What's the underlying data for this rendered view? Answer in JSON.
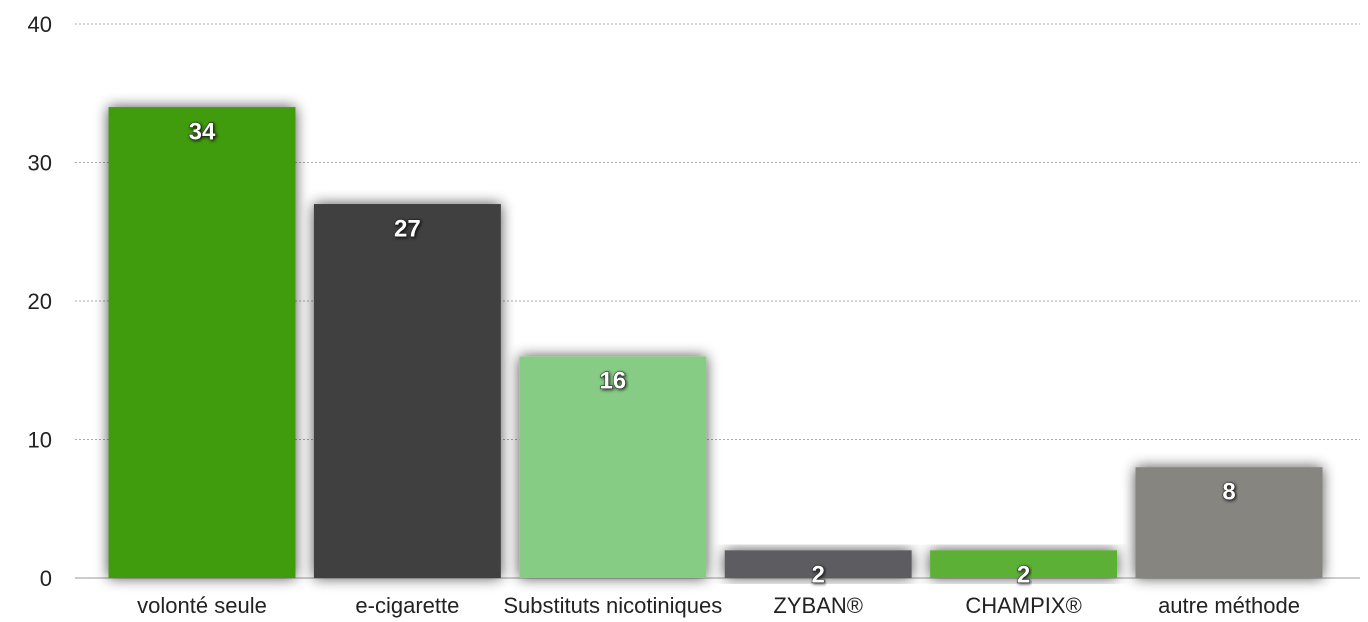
{
  "chart_data": {
    "type": "bar",
    "categories": [
      "volonté seule",
      "e-cigarette",
      "Substituts nicotiniques",
      "ZYBAN®",
      "CHAMPIX®",
      "autre méthode"
    ],
    "values": [
      34,
      27,
      16,
      2,
      2,
      8
    ],
    "colors": [
      "#3f9b0f",
      "#404040",
      "#86cc84",
      "#5d5c60",
      "#5bb035",
      "#878580"
    ],
    "ylim": [
      0,
      40
    ],
    "yticks": [
      0,
      10,
      20,
      30,
      40
    ],
    "grid": true
  }
}
